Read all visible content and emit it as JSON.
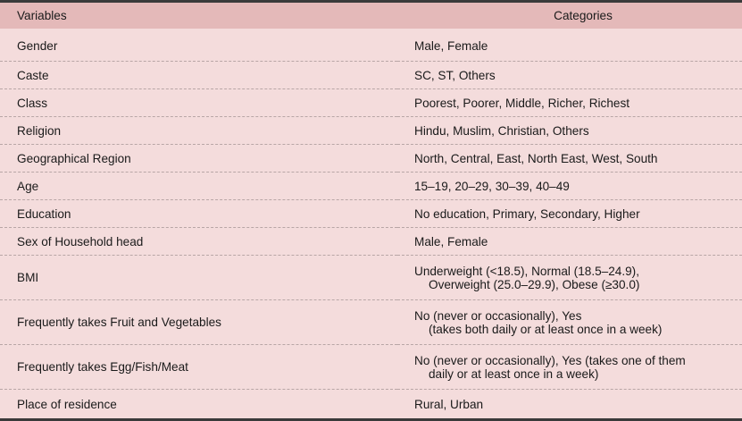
{
  "table": {
    "headers": {
      "variables": "Variables",
      "categories": "Categories"
    },
    "rows": [
      {
        "variable": "Gender",
        "categories": [
          "Male, Female"
        ]
      },
      {
        "variable": "Caste",
        "categories": [
          "SC, ST, Others"
        ]
      },
      {
        "variable": "Class",
        "categories": [
          "Poorest, Poorer, Middle, Richer, Richest"
        ]
      },
      {
        "variable": "Religion",
        "categories": [
          "Hindu, Muslim, Christian, Others"
        ]
      },
      {
        "variable": "Geographical Region",
        "categories": [
          "North, Central, East, North East, West, South"
        ]
      },
      {
        "variable": "Age",
        "categories": [
          "15–19, 20–29, 30–39, 40–49"
        ]
      },
      {
        "variable": "Education",
        "categories": [
          "No education, Primary, Secondary, Higher"
        ]
      },
      {
        "variable": "Sex of Household head",
        "categories": [
          "Male, Female"
        ]
      },
      {
        "variable": "BMI",
        "categories": [
          "Underweight (<18.5), Normal (18.5–24.9),",
          "Overweight (25.0–29.9), Obese (≥30.0)"
        ]
      },
      {
        "variable": "Frequently takes Fruit and Vegetables",
        "categories": [
          "No (never or occasionally), Yes",
          "(takes both daily or at least once in a week)"
        ]
      },
      {
        "variable": "Frequently takes Egg/Fish/Meat",
        "categories": [
          "No (never or occasionally), Yes (takes one of them",
          "daily or at least once in a week)"
        ]
      },
      {
        "variable": "Place of residence",
        "categories": [
          "Rural, Urban"
        ]
      }
    ],
    "colors": {
      "header_bg": "#e4b9b9",
      "body_bg": "#f4dcdc",
      "rule": "#3a3a3a"
    }
  }
}
